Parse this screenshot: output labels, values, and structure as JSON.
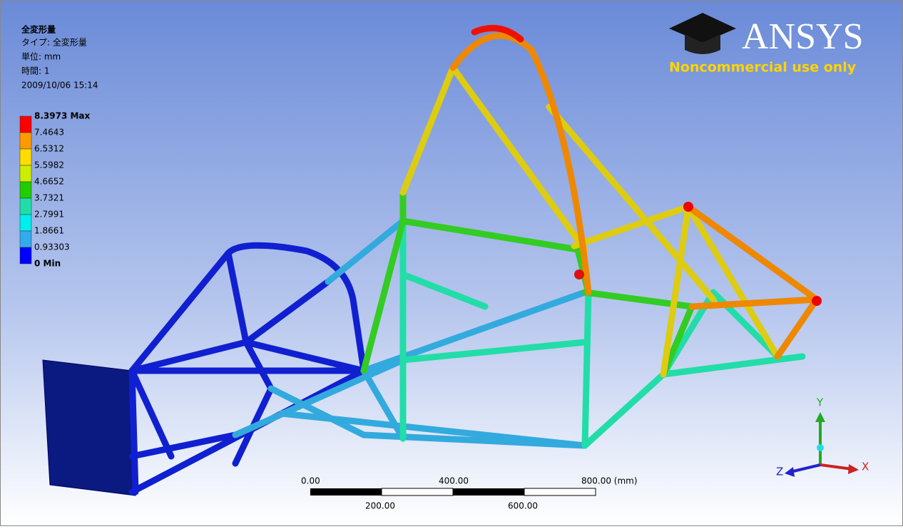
{
  "header": {
    "title": "全変形量",
    "type": "タイプ: 全変形量",
    "unit": "単位: mm",
    "time": "時間: 1",
    "date": "2009/10/06 15:14"
  },
  "legend": {
    "labels": [
      "8.3973 Max",
      "7.4643",
      "6.5312",
      "5.5982",
      "4.6652",
      "3.7321",
      "2.7991",
      "1.8661",
      "0.93303",
      "0 Min"
    ],
    "colors": [
      "#ff0000",
      "#ff9900",
      "#ffdd00",
      "#ccee00",
      "#22cc00",
      "#22ddaa",
      "#00eeee",
      "#33aaee",
      "#0000ff"
    ]
  },
  "logo": {
    "brand": "ANSYS",
    "note": "Noncommercial use only"
  },
  "scale_bar": {
    "top_labels": [
      "0.00",
      "400.00",
      "800.00 (mm)"
    ],
    "bottom_labels": [
      "200.00",
      "600.00"
    ]
  },
  "triad": {
    "x": "X",
    "y": "Y",
    "z": "Z"
  }
}
